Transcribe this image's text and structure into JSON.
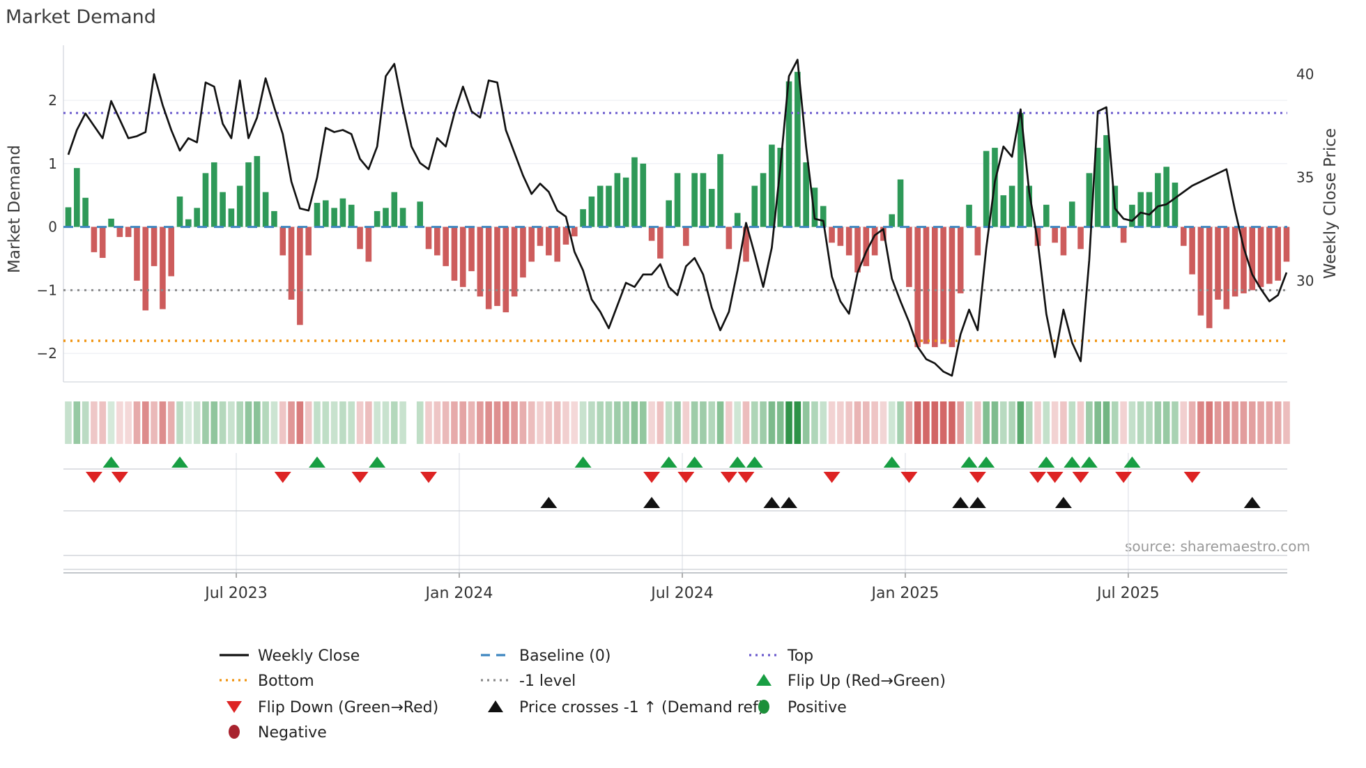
{
  "title": "Market Demand",
  "source_credit": "source: sharemaestro.com",
  "left_axis": {
    "label": "Market Demand",
    "ticks": [
      {
        "v": 2,
        "label": "2"
      },
      {
        "v": 1,
        "label": "1"
      },
      {
        "v": 0,
        "label": "0"
      },
      {
        "v": -1,
        "label": "−1"
      },
      {
        "v": -2,
        "label": "−2"
      }
    ]
  },
  "right_axis": {
    "label": "Weekly Close Price",
    "ticks": [
      {
        "v": 40,
        "label": "40"
      },
      {
        "v": 35,
        "label": "35"
      },
      {
        "v": 30,
        "label": "30"
      }
    ]
  },
  "x_axis": {
    "ticks": [
      {
        "index": 19.58,
        "label": "Jul 2023"
      },
      {
        "index": 45.57,
        "label": "Jan 2024"
      },
      {
        "index": 71.57,
        "label": "Jul 2024"
      },
      {
        "index": 97.56,
        "label": "Jan 2025"
      },
      {
        "index": 123.55,
        "label": "Jul 2025"
      }
    ]
  },
  "colors": {
    "bar_positive": "#2e9958",
    "bar_negative": "#cd5c5c",
    "price_line": "#111111",
    "baseline": "#3e86c0",
    "top_line": "#6a5acd",
    "bottom_line": "#f0930f",
    "minus1_line": "#8a8a8a",
    "flip_up": "#189e43",
    "flip_down": "#dd2323",
    "price_cross": "#111111",
    "positive_dot": "#1d8f3a",
    "negative_dot": "#a8232e",
    "grid": "#edeff4",
    "spine": "#d2d6dd",
    "band_line": "#c9cdd4",
    "tick_text": "#333333",
    "source_text": "#9a9a9a",
    "heat_green": "34,140,60",
    "heat_red": "198,62,62"
  },
  "legend": [
    {
      "type": "line",
      "color": "#111111",
      "label": "Weekly Close"
    },
    {
      "type": "dashed",
      "color": "#3e86c0",
      "label": "Baseline (0)"
    },
    {
      "type": "dotted",
      "color": "#6a5acd",
      "label": "Top"
    },
    {
      "type": "dotted",
      "color": "#f0930f",
      "label": "Bottom"
    },
    {
      "type": "dotted",
      "color": "#8a8a8a",
      "label": "-1 level"
    },
    {
      "type": "tri-up",
      "color": "#189e43",
      "label": "Flip Up (Red→Green)"
    },
    {
      "type": "tri-down",
      "color": "#dd2323",
      "label": "Flip Down (Green→Red)"
    },
    {
      "type": "tri-up",
      "color": "#111111",
      "label": "Price crosses -1 ↑ (Demand ref)"
    },
    {
      "type": "circle",
      "color": "#1d8f3a",
      "label": "Positive"
    },
    {
      "type": "circle",
      "color": "#a8232e",
      "label": "Negative"
    }
  ],
  "chart_data": {
    "type": "bar+line",
    "x_unit": "weeks (Feb 2023 – Nov 2025)",
    "demand_ylim": [
      -2.45,
      2.87
    ],
    "price_ylim": [
      25.1,
      41.4
    ],
    "top_level": 1.8,
    "baseline": 0,
    "minus1_level": -1,
    "bottom_level": -1.8,
    "grid_levels": [
      2,
      1,
      0,
      -1,
      -2
    ],
    "demand": [
      0.31,
      0.93,
      0.46,
      -0.4,
      -0.49,
      0.13,
      -0.16,
      -0.16,
      -0.85,
      -1.32,
      -0.62,
      -1.3,
      -0.78,
      0.48,
      0.12,
      0.3,
      0.85,
      1.02,
      0.55,
      0.29,
      0.65,
      1.02,
      1.12,
      0.55,
      0.25,
      -0.45,
      -1.15,
      -1.55,
      -0.45,
      0.38,
      0.42,
      0.3,
      0.45,
      0.35,
      -0.35,
      -0.55,
      0.25,
      0.3,
      0.55,
      0.3,
      null,
      0.4,
      -0.35,
      -0.45,
      -0.62,
      -0.85,
      -0.95,
      -0.7,
      -1.1,
      -1.3,
      -1.25,
      -1.35,
      -1.1,
      -0.8,
      -0.55,
      -0.3,
      -0.45,
      -0.55,
      -0.28,
      -0.15,
      0.28,
      0.48,
      0.65,
      0.65,
      0.85,
      0.78,
      1.1,
      1.0,
      -0.22,
      -0.5,
      0.42,
      0.85,
      -0.3,
      0.85,
      0.85,
      0.6,
      1.15,
      -0.35,
      0.22,
      -0.55,
      0.65,
      0.85,
      1.3,
      1.25,
      2.3,
      2.45,
      1.02,
      0.62,
      0.33,
      -0.25,
      -0.3,
      -0.45,
      -0.72,
      -0.62,
      -0.45,
      -0.22,
      0.2,
      0.75,
      -0.95,
      -1.9,
      -1.85,
      -1.9,
      -1.85,
      -1.9,
      -1.05,
      0.35,
      -0.45,
      1.2,
      1.25,
      0.5,
      0.65,
      1.8,
      0.65,
      -0.3,
      0.35,
      -0.25,
      -0.45,
      0.4,
      -0.35,
      0.85,
      1.25,
      1.45,
      0.65,
      -0.25,
      0.35,
      0.55,
      0.55,
      0.85,
      0.95,
      0.7,
      -0.3,
      -0.75,
      -1.4,
      -1.6,
      -1.15,
      -1.3,
      -1.1,
      -1.05,
      -1.0,
      -0.95,
      -0.9,
      -0.85,
      -0.55
    ],
    "price": [
      36.1,
      37.3,
      38.1,
      37.5,
      36.9,
      38.7,
      37.8,
      36.9,
      37.0,
      37.2,
      40.0,
      38.5,
      37.3,
      36.3,
      36.9,
      36.7,
      39.6,
      39.4,
      37.6,
      36.9,
      39.7,
      36.9,
      37.9,
      39.8,
      38.4,
      37.1,
      34.8,
      33.5,
      33.4,
      35.0,
      37.4,
      37.2,
      37.3,
      37.1,
      35.9,
      35.4,
      36.5,
      39.9,
      40.5,
      38.4,
      36.5,
      35.7,
      35.4,
      36.9,
      36.5,
      38.1,
      39.4,
      38.2,
      37.9,
      39.7,
      39.6,
      37.3,
      36.2,
      35.1,
      34.2,
      34.7,
      34.3,
      33.4,
      33.1,
      31.4,
      30.5,
      29.1,
      28.5,
      27.7,
      28.8,
      29.9,
      29.7,
      30.3,
      30.3,
      30.8,
      29.7,
      29.3,
      30.7,
      31.1,
      30.3,
      28.7,
      27.6,
      28.5,
      30.5,
      32.8,
      31.3,
      29.7,
      31.6,
      35.5,
      39.9,
      40.7,
      36.5,
      33.0,
      32.9,
      30.2,
      29.0,
      28.4,
      30.4,
      31.4,
      32.2,
      32.5,
      30.1,
      29.0,
      28.0,
      26.8,
      26.2,
      26.0,
      25.6,
      25.4,
      27.4,
      28.6,
      27.6,
      31.6,
      34.8,
      36.5,
      36.0,
      38.3,
      34.3,
      31.9,
      28.4,
      26.3,
      28.6,
      27.0,
      26.1,
      31.0,
      38.2,
      38.4,
      33.5,
      33.0,
      32.9,
      33.3,
      33.2,
      33.6,
      33.7,
      34.0,
      34.3,
      34.6,
      34.8,
      35.0,
      35.2,
      35.4,
      33.4,
      31.6,
      30.3,
      29.6,
      29.0,
      29.3,
      30.4
    ],
    "markers": {
      "flip_up": [
        5,
        13,
        29,
        36,
        60,
        70,
        73,
        78,
        80,
        96,
        105,
        107,
        114,
        117,
        119,
        124
      ],
      "flip_down": [
        3,
        6,
        25,
        34,
        42,
        68,
        72,
        77,
        79,
        89,
        98,
        106,
        113,
        115,
        118,
        123,
        131
      ],
      "price_cross": [
        56,
        68,
        82,
        84,
        104,
        106,
        116,
        138
      ]
    }
  }
}
